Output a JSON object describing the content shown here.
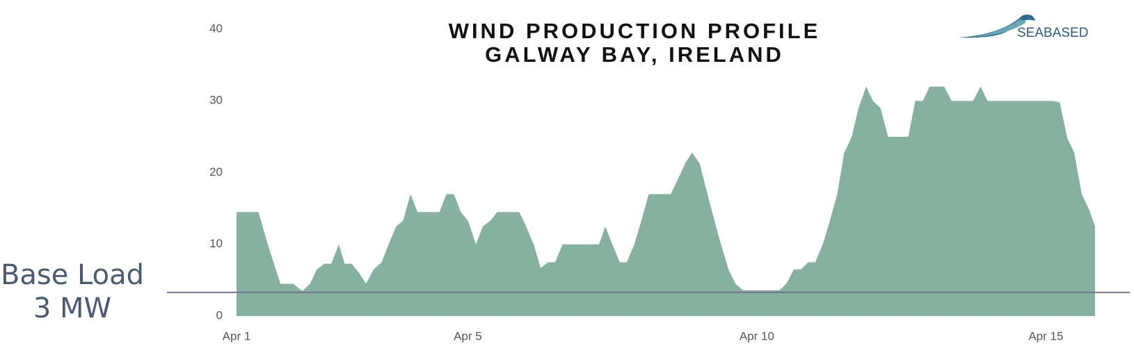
{
  "chart_data": {
    "type": "area",
    "title": "WIND PRODUCTION PROFILE",
    "subtitle": "GALWAY BAY, IRELAND",
    "logo": "SEABASED",
    "color": "#86b0a0",
    "x": [
      1.0,
      1.38,
      1.54,
      1.76,
      1.98,
      2.14,
      2.27,
      2.39,
      2.52,
      2.64,
      2.77,
      2.87,
      2.99,
      3.12,
      3.24,
      3.37,
      3.51,
      3.63,
      3.76,
      3.88,
      4.01,
      4.13,
      4.51,
      4.63,
      4.76,
      4.88,
      5.01,
      5.14,
      5.26,
      5.39,
      5.51,
      5.89,
      6.01,
      6.14,
      6.26,
      6.39,
      6.51,
      6.64,
      7.27,
      7.38,
      7.5,
      7.63,
      7.75,
      7.88,
      8.01,
      8.13,
      8.51,
      8.63,
      8.76,
      8.88,
      9.01,
      9.13,
      9.26,
      9.38,
      9.51,
      9.63,
      9.76,
      10.39,
      10.51,
      10.64,
      10.76,
      10.89,
      11.01,
      11.14,
      11.26,
      11.39,
      11.51,
      11.64,
      11.76,
      11.89,
      12.01,
      12.14,
      12.27,
      12.62,
      12.74,
      12.87,
      12.99,
      13.24,
      13.37,
      13.74,
      13.87,
      13.99,
      15.12,
      15.24,
      15.37,
      15.49,
      15.62,
      15.75,
      15.85
    ],
    "values": [
      14.5,
      14.5,
      10,
      4.5,
      4.5,
      3.5,
      4.5,
      6.5,
      7.3,
      7.3,
      10,
      7.3,
      7.3,
      6,
      4.5,
      6.5,
      7.5,
      10,
      12.5,
      13.3,
      17,
      14.5,
      14.5,
      17,
      17,
      14.5,
      13.2,
      10,
      12.5,
      13.3,
      14.5,
      14.5,
      12.5,
      10,
      6.7,
      7.5,
      7.5,
      10,
      10,
      12.5,
      10,
      7.5,
      7.5,
      10,
      13.5,
      17,
      17,
      19,
      21.3,
      22.8,
      21.3,
      17.5,
      13.5,
      10,
      6.5,
      4.5,
      3.6,
      3.6,
      4.5,
      6.5,
      6.5,
      7.5,
      7.5,
      10,
      13.2,
      17,
      22.7,
      25,
      29,
      32,
      30,
      29,
      25,
      25,
      30,
      30,
      32,
      32,
      30,
      30,
      32,
      30,
      30,
      29.8,
      24.8,
      22.8,
      17,
      14.8,
      12.5
    ],
    "xlim": [
      1.0,
      15.85
    ],
    "xticks": [
      {
        "value": 1,
        "label": "Apr 1"
      },
      {
        "value": 5,
        "label": "Apr 5"
      },
      {
        "value": 10,
        "label": "Apr 10"
      },
      {
        "value": 15,
        "label": "Apr 15"
      }
    ],
    "ylim": [
      0,
      40
    ],
    "yticks": [
      0,
      10,
      20,
      30,
      40
    ],
    "baseline": {
      "value": 3.3,
      "label_lines": [
        "Base Load",
        "3 MW"
      ],
      "color": "#707888"
    }
  }
}
